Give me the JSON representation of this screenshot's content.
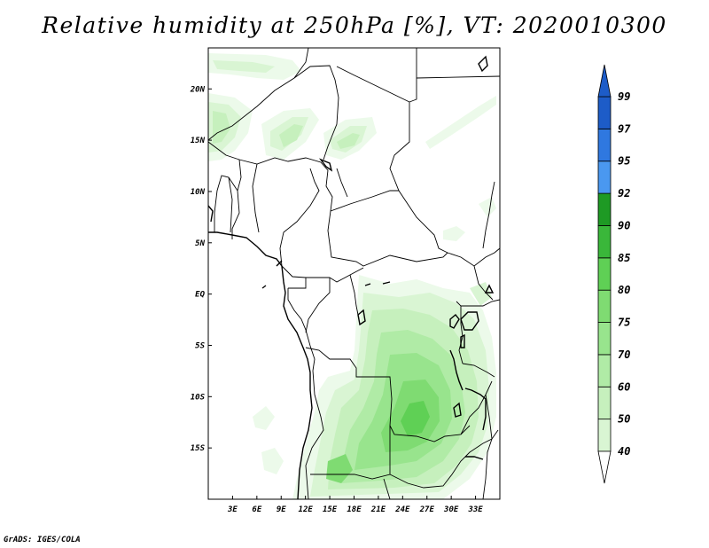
{
  "title": "Relative humidity at 250hPa [%], VT: 2020010300",
  "credit": "GrADS: IGES/COLA",
  "map": {
    "lon_range": [
      0,
      36
    ],
    "lat_range": [
      -20,
      24
    ],
    "lat_ticks": [
      {
        "value": 20,
        "label": "20N"
      },
      {
        "value": 15,
        "label": "15N"
      },
      {
        "value": 10,
        "label": "10N"
      },
      {
        "value": 5,
        "label": "5N"
      },
      {
        "value": 0,
        "label": "EQ"
      },
      {
        "value": -5,
        "label": "5S"
      },
      {
        "value": -10,
        "label": "10S"
      },
      {
        "value": -15,
        "label": "15S"
      }
    ],
    "lon_ticks": [
      {
        "value": 3,
        "label": "3E"
      },
      {
        "value": 6,
        "label": "6E"
      },
      {
        "value": 9,
        "label": "9E"
      },
      {
        "value": 12,
        "label": "12E"
      },
      {
        "value": 15,
        "label": "15E"
      },
      {
        "value": 18,
        "label": "18E"
      },
      {
        "value": 21,
        "label": "21E"
      },
      {
        "value": 24,
        "label": "24E"
      },
      {
        "value": 27,
        "label": "27E"
      },
      {
        "value": 30,
        "label": "30E"
      },
      {
        "value": 33,
        "label": "33E"
      }
    ]
  },
  "colorbar": {
    "levels": [
      "40",
      "50",
      "60",
      "70",
      "75",
      "80",
      "85",
      "90",
      "92",
      "95",
      "97",
      "99"
    ],
    "colors": [
      "#ecfaea",
      "#d9f5d3",
      "#c6f0bd",
      "#b0eba6",
      "#98e48d",
      "#7fdb72",
      "#5fd055",
      "#3ab73a",
      "#1e9a24",
      "#4a98f0",
      "#2f78e0",
      "#1d5cc8"
    ]
  }
}
